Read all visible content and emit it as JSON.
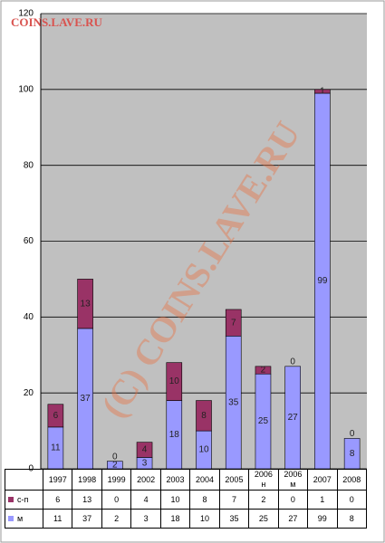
{
  "chart_data": {
    "type": "stacked-bar",
    "watermark": "COINS.LAVE.RU",
    "watermark_large": "(C) COINS.LAVE.RU",
    "categories": [
      "1997",
      "1998",
      "1999",
      "2002",
      "2003",
      "2004",
      "2005",
      "2006\nн",
      "2006\nм",
      "2007",
      "2008"
    ],
    "series": [
      {
        "name": "с-п",
        "color": "#993366",
        "values": [
          6,
          13,
          0,
          4,
          10,
          8,
          7,
          2,
          0,
          1,
          0
        ]
      },
      {
        "name": "м",
        "color": "#9999ff",
        "values": [
          11,
          37,
          2,
          3,
          18,
          10,
          35,
          25,
          27,
          99,
          8
        ]
      }
    ],
    "ylim": [
      0,
      120
    ],
    "yticks": [
      0,
      20,
      40,
      60,
      80,
      100,
      120
    ],
    "grid": true
  }
}
